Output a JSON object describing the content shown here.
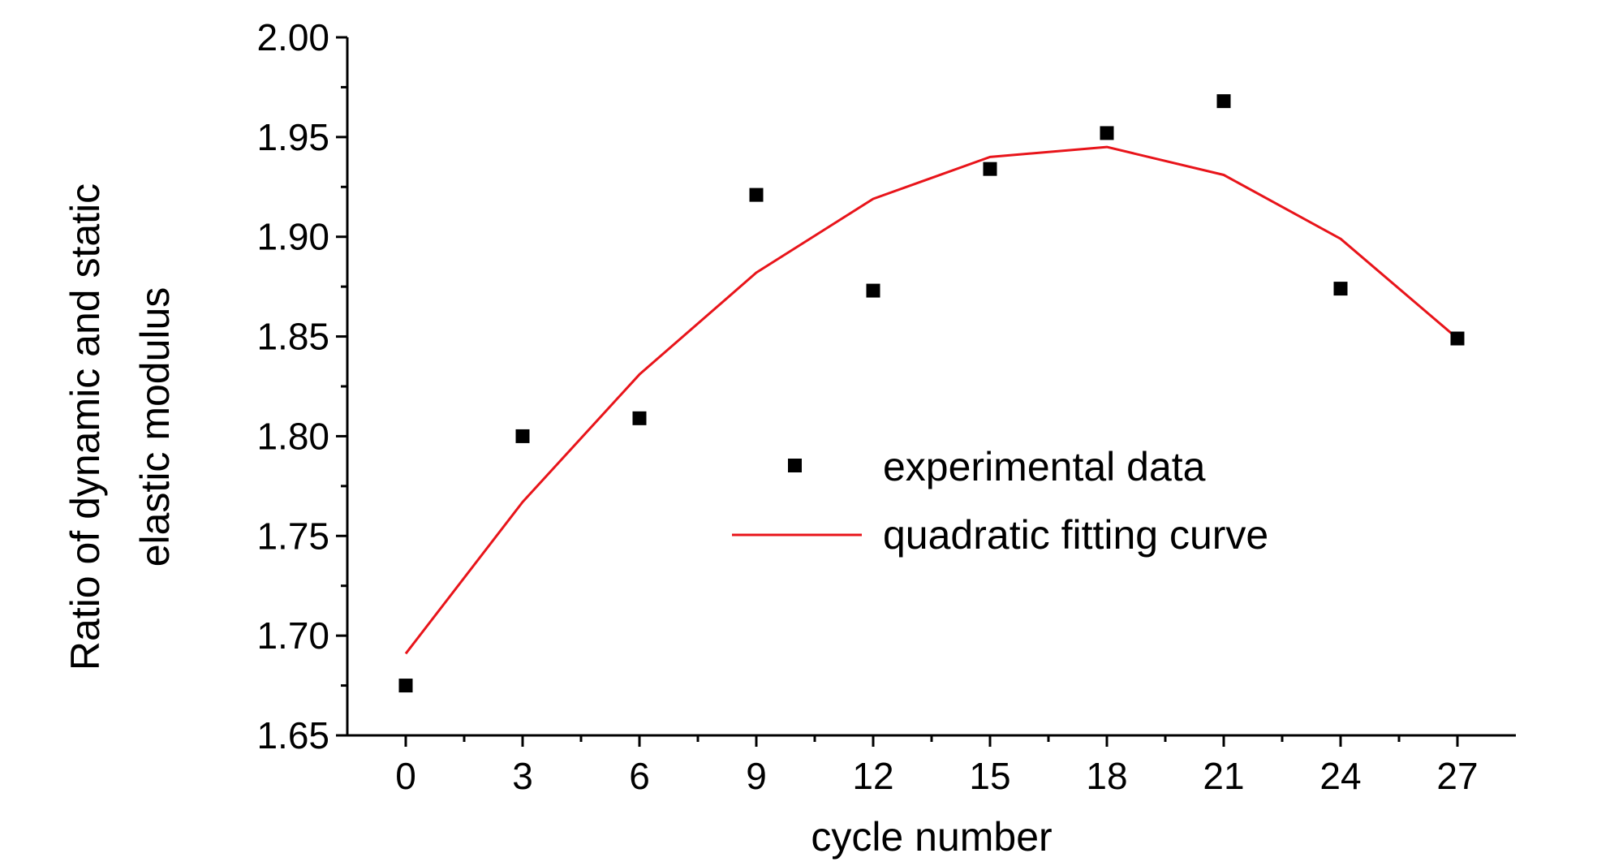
{
  "chart_data": {
    "type": "scatter",
    "title": "",
    "xlabel": "cycle number",
    "ylabel_lines": [
      "Ratio of dynamic and static",
      "elastic modulus"
    ],
    "xlim": [
      -1.5,
      28.5
    ],
    "ylim": [
      1.65,
      2.0
    ],
    "xticks": [
      0,
      3,
      6,
      9,
      12,
      15,
      18,
      21,
      24,
      27
    ],
    "yticks": [
      1.65,
      1.7,
      1.75,
      1.8,
      1.85,
      1.9,
      1.95,
      2.0
    ],
    "ytick_labels": [
      "1.65",
      "1.70",
      "1.75",
      "1.80",
      "1.85",
      "1.90",
      "1.95",
      "2.00"
    ],
    "grid": false,
    "legend_position": "center-right",
    "series": [
      {
        "name": "experimental data",
        "kind": "marker",
        "marker": "square",
        "color": "#000000",
        "x": [
          0,
          3,
          6,
          9,
          12,
          15,
          18,
          21,
          24,
          27
        ],
        "y": [
          1.675,
          1.8,
          1.809,
          1.921,
          1.873,
          1.934,
          1.952,
          1.968,
          1.874,
          1.849
        ]
      },
      {
        "name": "quadratic fitting curve",
        "kind": "line",
        "color": "#e8141a",
        "x": [
          0,
          3,
          6,
          9,
          12,
          15,
          18,
          21,
          24,
          27
        ],
        "y": [
          1.691,
          1.767,
          1.831,
          1.882,
          1.919,
          1.94,
          1.945,
          1.931,
          1.899,
          1.849
        ]
      }
    ]
  }
}
